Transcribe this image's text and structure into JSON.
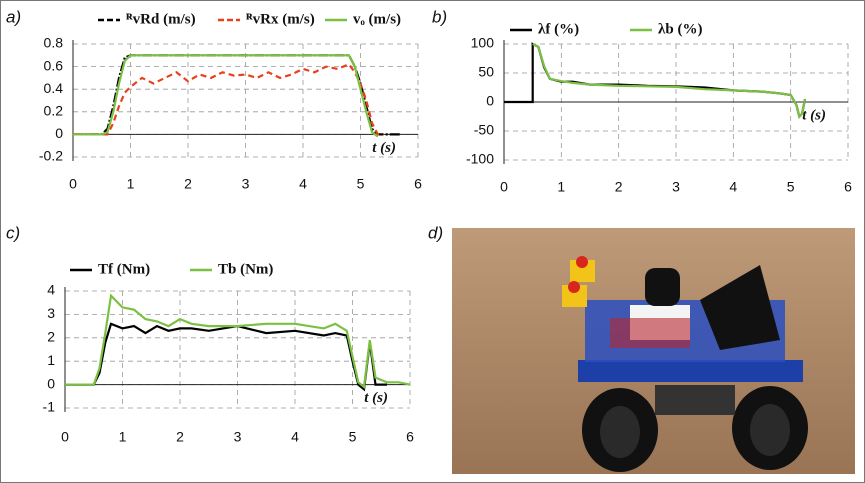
{
  "chart_data": [
    {
      "type": "line",
      "label": "a)",
      "x_label": "t (s)",
      "x": [
        0,
        0.5,
        0.6,
        0.7,
        0.8,
        0.9,
        1.0,
        1.2,
        1.4,
        1.6,
        1.8,
        2.0,
        2.2,
        2.4,
        2.6,
        2.8,
        3.0,
        3.2,
        3.4,
        3.6,
        3.8,
        4.0,
        4.2,
        4.4,
        4.6,
        4.8,
        4.9,
        5.0,
        5.1,
        5.2,
        5.3,
        5.4,
        5.7
      ],
      "xlim": [
        0,
        6
      ],
      "xticks": [
        0,
        1,
        2,
        3,
        4,
        5,
        6
      ],
      "ylim": [
        -0.2,
        0.8
      ],
      "yticks": [
        -0.2,
        0,
        0.2,
        0.4,
        0.6,
        0.8
      ],
      "grid": true,
      "series": [
        {
          "name": "ᴿvRd (m/s)",
          "color": "#000000",
          "dash": true,
          "values": [
            0,
            0,
            0.05,
            0.25,
            0.5,
            0.68,
            0.7,
            0.7,
            0.7,
            0.7,
            0.7,
            0.7,
            0.7,
            0.7,
            0.7,
            0.7,
            0.7,
            0.7,
            0.7,
            0.7,
            0.7,
            0.7,
            0.7,
            0.7,
            0.7,
            0.7,
            0.6,
            0.45,
            0.25,
            0.05,
            0,
            0,
            0
          ]
        },
        {
          "name": "ᴿvRx (m/s)",
          "color": "#e8401c",
          "dash": true,
          "values": [
            0,
            0,
            0,
            0.1,
            0.25,
            0.37,
            0.42,
            0.5,
            0.45,
            0.5,
            0.55,
            0.47,
            0.53,
            0.5,
            0.55,
            0.52,
            0.53,
            0.5,
            0.55,
            0.5,
            0.53,
            0.58,
            0.55,
            0.6,
            0.58,
            0.62,
            0.55,
            0.45,
            0.3,
            0.1,
            0,
            0,
            null
          ]
        },
        {
          "name": "vₒ (m/s)",
          "color": "#7cc043",
          "dash": false,
          "values": [
            0,
            0,
            0.02,
            0.2,
            0.45,
            0.65,
            0.7,
            0.7,
            0.7,
            0.7,
            0.7,
            0.7,
            0.7,
            0.7,
            0.7,
            0.7,
            0.7,
            0.7,
            0.7,
            0.7,
            0.7,
            0.7,
            0.7,
            0.7,
            0.7,
            0.7,
            0.6,
            0.4,
            0.2,
            0.02,
            -0.02,
            null,
            null
          ]
        }
      ]
    },
    {
      "type": "line",
      "label": "b)",
      "x_label": "t (s)",
      "x": [
        0,
        0.5,
        0.5,
        0.6,
        0.7,
        0.8,
        1.0,
        1.2,
        1.5,
        2.0,
        2.5,
        3.0,
        3.5,
        4.0,
        4.5,
        4.8,
        5.0,
        5.1,
        5.15,
        5.2,
        5.25
      ],
      "xlim": [
        0,
        6
      ],
      "xticks": [
        0,
        1,
        2,
        3,
        4,
        5,
        6
      ],
      "ylim": [
        -100,
        100
      ],
      "yticks": [
        -100,
        -50,
        0,
        50,
        100
      ],
      "grid": true,
      "series": [
        {
          "name": "λf (%)",
          "color": "#000000",
          "dash": false,
          "values": [
            0,
            0,
            100,
            95,
            60,
            40,
            35,
            35,
            30,
            30,
            28,
            27,
            25,
            20,
            18,
            15,
            12,
            -5,
            -25,
            -20,
            5
          ]
        },
        {
          "name": "λb (%)",
          "color": "#7cc043",
          "dash": false,
          "values": [
            null,
            null,
            100,
            95,
            62,
            40,
            36,
            33,
            30,
            28,
            27,
            26,
            22,
            20,
            18,
            15,
            12,
            -5,
            -25,
            -20,
            5
          ]
        }
      ]
    },
    {
      "type": "line",
      "label": "c)",
      "x_label": "t (s)",
      "x": [
        0,
        0.5,
        0.6,
        0.7,
        0.8,
        1.0,
        1.2,
        1.4,
        1.6,
        1.8,
        2.0,
        2.2,
        2.5,
        3.0,
        3.5,
        4.0,
        4.5,
        4.7,
        4.9,
        5.0,
        5.1,
        5.2,
        5.3,
        5.4,
        5.6,
        5.8,
        6.0
      ],
      "xlim": [
        0,
        6
      ],
      "xticks": [
        0,
        1,
        2,
        3,
        4,
        5,
        6
      ],
      "ylim": [
        -1,
        4
      ],
      "yticks": [
        -1,
        0,
        1,
        2,
        3,
        4
      ],
      "grid": true,
      "series": [
        {
          "name": "Tf (Nm)",
          "color": "#000000",
          "dash": false,
          "values": [
            0,
            0,
            0.5,
            1.8,
            2.6,
            2.4,
            2.5,
            2.2,
            2.5,
            2.3,
            2.4,
            2.4,
            2.3,
            2.5,
            2.2,
            2.3,
            2.1,
            2.2,
            2.1,
            1.0,
            0,
            -0.2,
            1.8,
            0,
            0,
            null,
            null
          ]
        },
        {
          "name": "Tb (Nm)",
          "color": "#7cc043",
          "dash": false,
          "values": [
            0,
            0,
            0.7,
            2.2,
            3.8,
            3.3,
            3.2,
            2.8,
            2.7,
            2.5,
            2.8,
            2.6,
            2.5,
            2.5,
            2.6,
            2.6,
            2.4,
            2.6,
            2.3,
            1.2,
            0.1,
            -0.1,
            1.9,
            0.3,
            0.1,
            0.1,
            0
          ]
        }
      ]
    }
  ],
  "photo_label": "d)"
}
